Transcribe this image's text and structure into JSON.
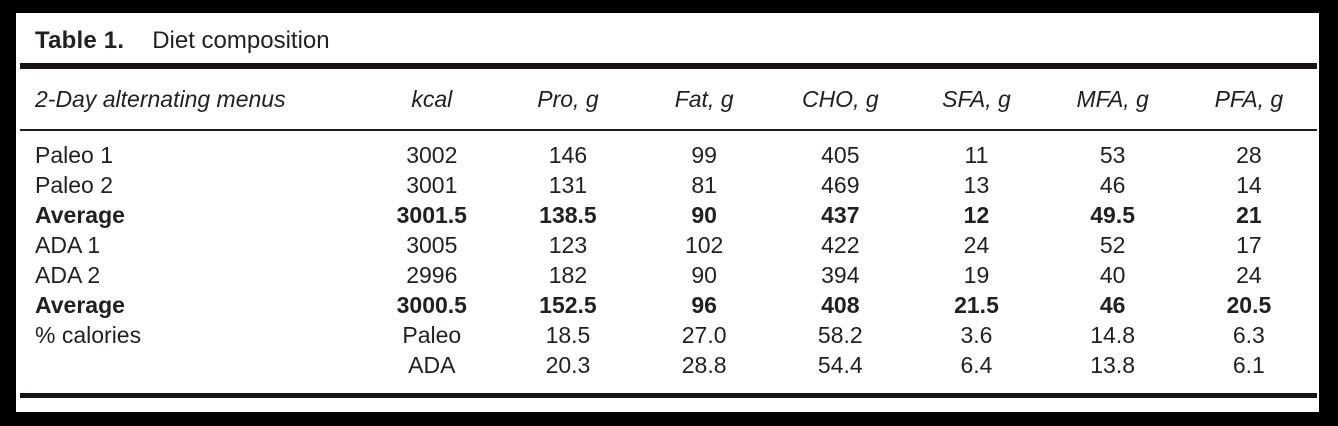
{
  "title": {
    "label": "Table 1.",
    "caption": "Diet composition"
  },
  "table": {
    "columns": [
      "2-Day alternating menus",
      "kcal",
      "Pro, g",
      "Fat, g",
      "CHO, g",
      "SFA, g",
      "MFA, g",
      "PFA, g"
    ],
    "rows": [
      {
        "cells": [
          "Paleo 1",
          "3002",
          "146",
          "99",
          "405",
          "11",
          "53",
          "28"
        ]
      },
      {
        "cells": [
          "Paleo 2",
          "3001",
          "131",
          "81",
          "469",
          "13",
          "46",
          "14"
        ]
      },
      {
        "cells": [
          "Average",
          "3001.5",
          "138.5",
          "90",
          "437",
          "12",
          "49.5",
          "21"
        ]
      },
      {
        "cells": [
          "ADA 1",
          "3005",
          "123",
          "102",
          "422",
          "24",
          "52",
          "17"
        ]
      },
      {
        "cells": [
          "ADA 2",
          "2996",
          "182",
          "90",
          "394",
          "19",
          "40",
          "24"
        ]
      },
      {
        "cells": [
          "Average",
          "3000.5",
          "152.5",
          "96",
          "408",
          "21.5",
          "46",
          "20.5"
        ]
      },
      {
        "cells": [
          "% calories",
          "Paleo",
          "18.5",
          "27.0",
          "58.2",
          "3.6",
          "14.8",
          "6.3"
        ]
      },
      {
        "cells": [
          "",
          "ADA",
          "20.3",
          "28.8",
          "54.4",
          "6.4",
          "13.8",
          "6.1"
        ]
      }
    ]
  },
  "colors": {
    "frame": "#000000",
    "background": "#ffffff",
    "text": "#231f20",
    "rule": "#231f20"
  }
}
